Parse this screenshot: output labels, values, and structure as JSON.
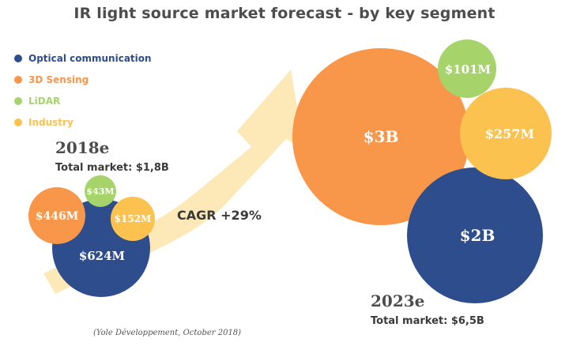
{
  "colors": {
    "optical": "#2e4d8c",
    "sensing3d": "#f8964a",
    "lidar": "#a6d46a",
    "industry": "#fcc24f",
    "arrow": "#fde9b8"
  },
  "chart_data": {
    "type": "bubble",
    "title": "IR light source market forecast - by key segment",
    "legend": [
      {
        "name": "Optical communication",
        "color_key": "optical"
      },
      {
        "name": "3D Sensing",
        "color_key": "sensing3d"
      },
      {
        "name": "LiDAR",
        "color_key": "lidar"
      },
      {
        "name": "Industry",
        "color_key": "industry"
      }
    ],
    "groups": [
      {
        "year": "2018e",
        "total": "Total market: $1,8B",
        "segments": [
          {
            "segment": "Optical communication",
            "value_musd": 624,
            "label": "$624M"
          },
          {
            "segment": "3D Sensing",
            "value_musd": 446,
            "label": "$446M"
          },
          {
            "segment": "LiDAR",
            "value_musd": 43,
            "label": "$43M"
          },
          {
            "segment": "Industry",
            "value_musd": 152,
            "label": "$152M"
          }
        ]
      },
      {
        "year": "2023e",
        "total": "Total market: $6,5B",
        "segments": [
          {
            "segment": "Optical communication",
            "value_musd": 2000,
            "label": "$2B"
          },
          {
            "segment": "3D Sensing",
            "value_musd": 3000,
            "label": "$3B"
          },
          {
            "segment": "LiDAR",
            "value_musd": 101,
            "label": "$101M"
          },
          {
            "segment": "Industry",
            "value_musd": 257,
            "label": "$257M"
          }
        ]
      }
    ],
    "cagr": "CAGR +29%",
    "source": "(Yole Développement, October 2018)"
  }
}
